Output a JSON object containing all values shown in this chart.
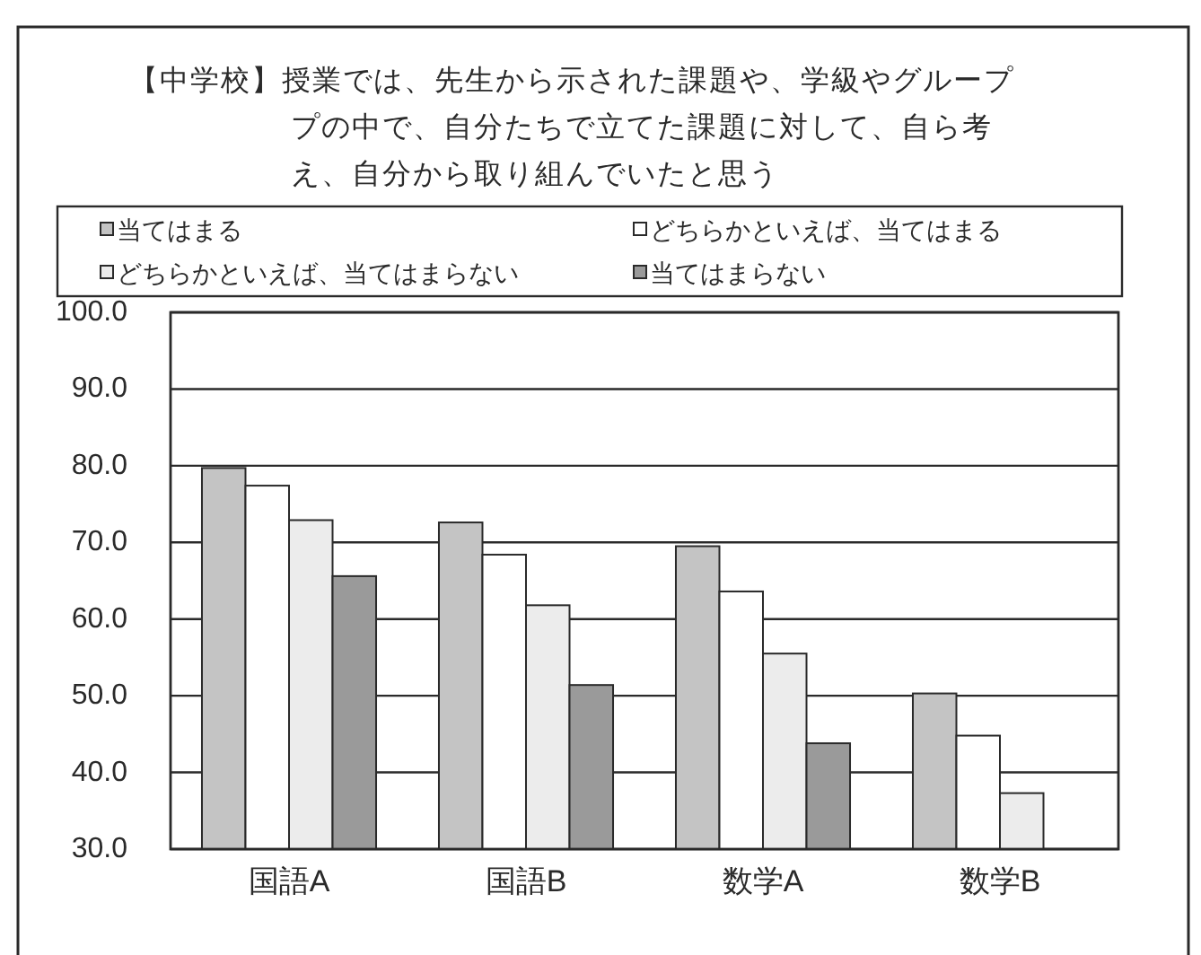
{
  "chart_data": {
    "type": "bar",
    "title": "【中学校】授業では、先生から示された課題や、学級やグループプの中で、自分たちで立てた課題に対して、自ら考え、自分から取り組んでいたと思う",
    "categories": [
      "国語A",
      "国語B",
      "数学A",
      "数学B"
    ],
    "series": [
      {
        "name": "当てはまる",
        "color": "#c4c4c4",
        "values": [
          79.7,
          72.6,
          69.5,
          50.3
        ]
      },
      {
        "name": "どちらかといえば、当てはまる",
        "color": "#ffffff",
        "values": [
          77.4,
          68.4,
          63.6,
          44.8
        ]
      },
      {
        "name": "どちらかといえば、当てはまらない",
        "color": "#ececec",
        "values": [
          72.9,
          61.8,
          55.5,
          37.3
        ]
      },
      {
        "name": "当てはまらない",
        "color": "#9a9a9a",
        "values": [
          65.6,
          51.4,
          43.8,
          null
        ]
      }
    ],
    "ylim": [
      30,
      100
    ],
    "yticks": [
      {
        "value": 30,
        "label": "30.0"
      },
      {
        "value": 40,
        "label": "40.0"
      },
      {
        "value": 50,
        "label": "50.0"
      },
      {
        "value": 60,
        "label": "60.0"
      },
      {
        "value": 70,
        "label": "70.0"
      },
      {
        "value": 80,
        "label": "80.0"
      },
      {
        "value": 90,
        "label": "90.0"
      },
      {
        "value": 100,
        "label": "100.0"
      }
    ],
    "grid": "y",
    "legend": "top"
  }
}
